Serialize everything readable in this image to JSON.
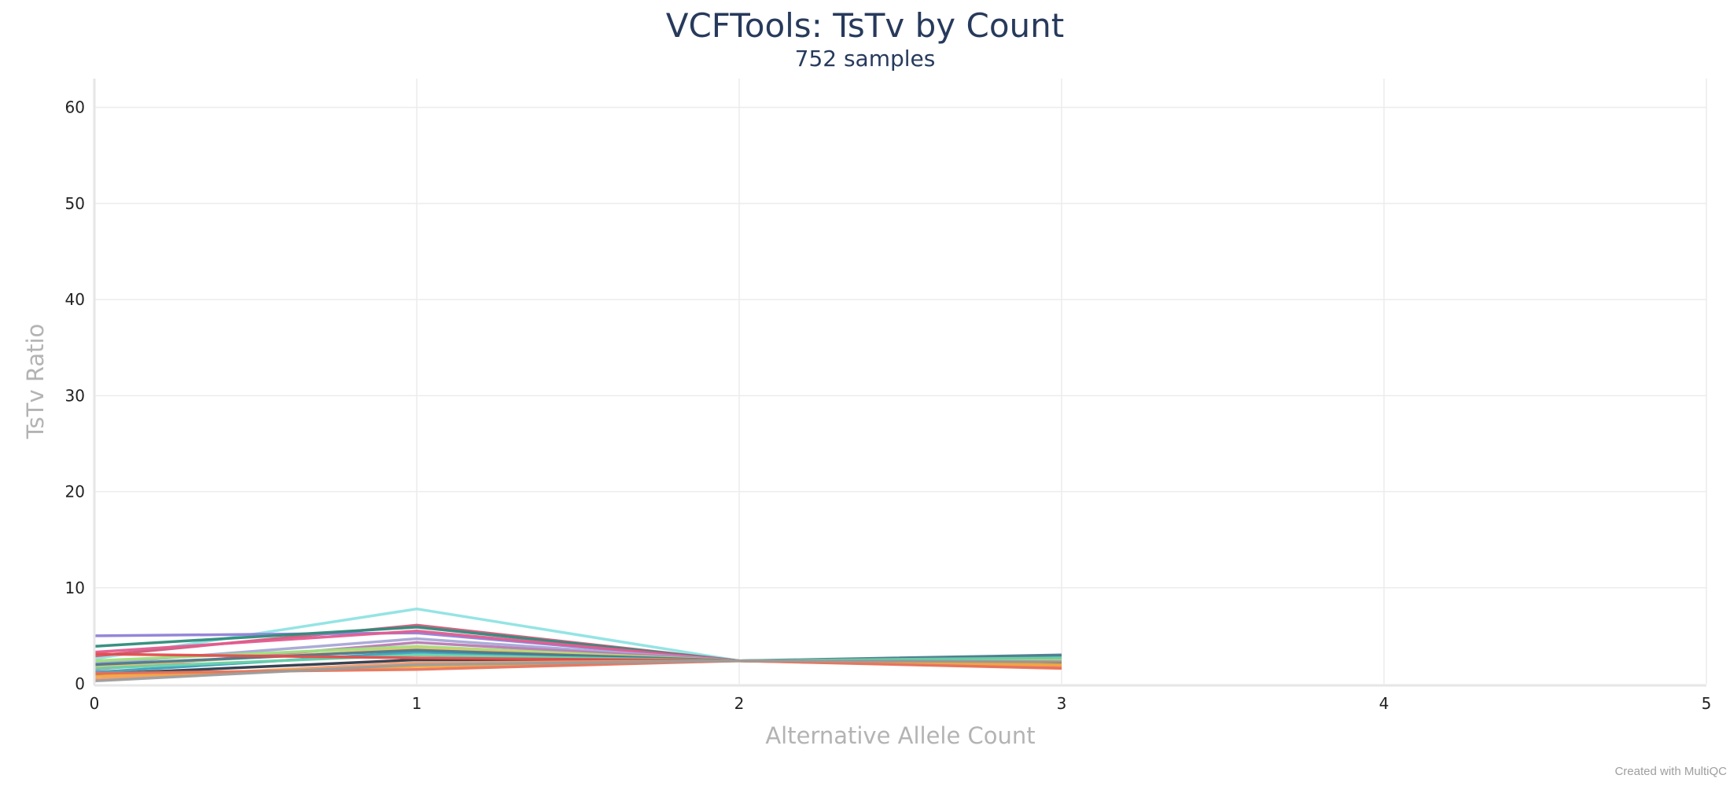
{
  "chart_data": {
    "type": "line",
    "title": "VCFTools: TsTv by Count",
    "subtitle": "752 samples",
    "xlabel": "Alternative Allele Count",
    "ylabel": "TsTv Ratio",
    "xlim": [
      0,
      5
    ],
    "ylim": [
      0,
      63
    ],
    "x_ticks": [
      0,
      1,
      2,
      3,
      4,
      5
    ],
    "y_ticks": [
      0,
      10,
      20,
      30,
      40,
      50,
      60
    ],
    "grid": true,
    "legend": "none",
    "x": [
      0,
      1,
      2,
      3
    ],
    "series": [
      {
        "color": "#8fe3e3",
        "values": [
          2.6,
          7.8,
          2.4,
          2.1
        ]
      },
      {
        "color": "#cc5c7a",
        "values": [
          2.9,
          6.1,
          2.4,
          1.9
        ]
      },
      {
        "color": "#8f7fd6",
        "values": [
          5.0,
          5.3,
          2.4,
          2.2
        ]
      },
      {
        "color": "#2e8b7a",
        "values": [
          3.9,
          5.9,
          2.4,
          2.5
        ]
      },
      {
        "color": "#e35c8f",
        "values": [
          3.3,
          5.5,
          2.4,
          2.0
        ]
      },
      {
        "color": "#a6a6d6",
        "values": [
          2.1,
          4.7,
          2.4,
          2.3
        ]
      },
      {
        "color": "#b97ab3",
        "values": [
          1.5,
          4.3,
          2.4,
          2.2
        ]
      },
      {
        "color": "#9ee07a",
        "values": [
          2.4,
          3.9,
          2.4,
          2.6
        ]
      },
      {
        "color": "#e3c36b",
        "values": [
          1.8,
          3.7,
          2.4,
          2.4
        ]
      },
      {
        "color": "#3a9fbf",
        "values": [
          1.2,
          3.3,
          2.4,
          2.8
        ]
      },
      {
        "color": "#4a7a8c",
        "values": [
          2.0,
          3.5,
          2.4,
          3.0
        ]
      },
      {
        "color": "#6ad1a8",
        "values": [
          1.6,
          3.0,
          2.4,
          2.7
        ]
      },
      {
        "color": "#2d3a4a",
        "values": [
          1.0,
          2.5,
          2.4,
          2.2
        ]
      },
      {
        "color": "#e34d4d",
        "values": [
          3.1,
          2.7,
          2.4,
          1.7
        ]
      },
      {
        "color": "#f59a6b",
        "values": [
          0.5,
          2.2,
          2.4,
          1.9
        ]
      },
      {
        "color": "#f0a83c",
        "values": [
          0.8,
          1.8,
          2.4,
          2.0
        ]
      },
      {
        "color": "#e8735c",
        "values": [
          1.1,
          1.5,
          2.4,
          1.6
        ]
      },
      {
        "color": "#9c9c9c",
        "values": [
          0.3,
          2.0,
          2.4,
          2.3
        ]
      }
    ]
  },
  "credit": "Created with MultiQC"
}
